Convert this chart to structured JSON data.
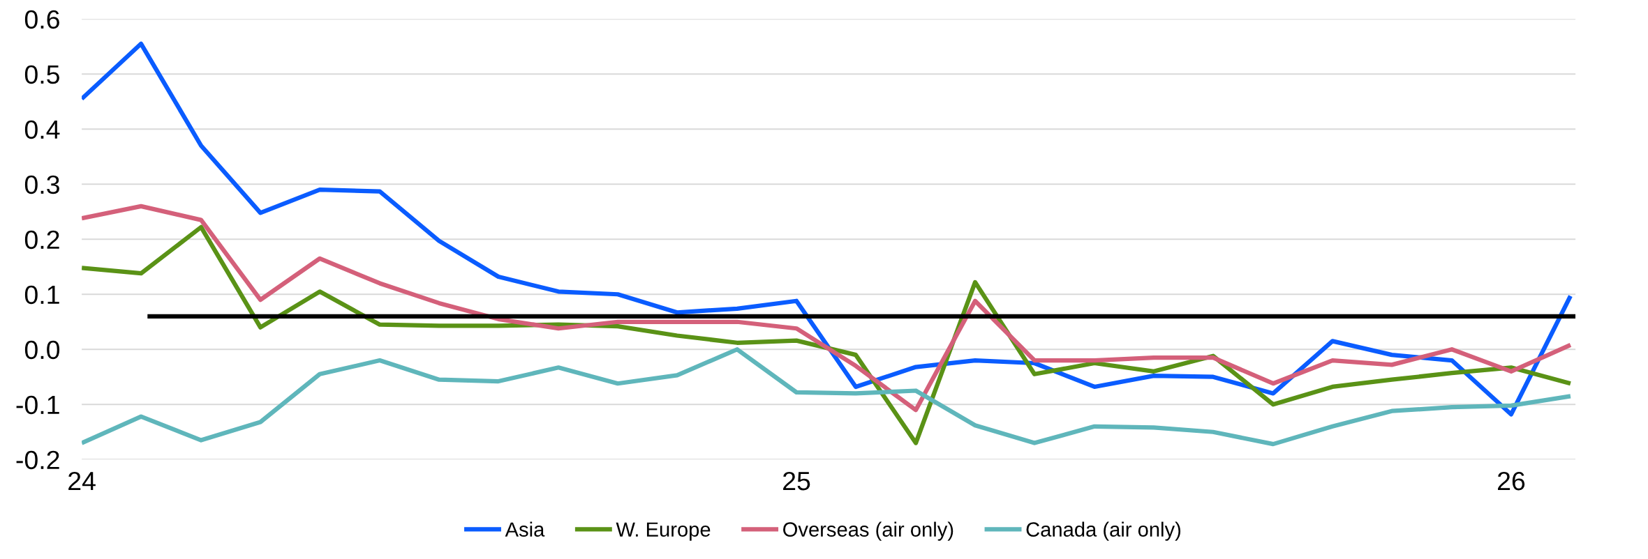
{
  "chart_data": {
    "type": "line",
    "x": [
      24.0,
      24.083,
      24.167,
      24.25,
      24.333,
      24.417,
      24.5,
      24.583,
      24.667,
      24.75,
      24.833,
      24.917,
      25.0,
      25.083,
      25.167,
      25.25,
      25.333,
      25.417,
      25.5,
      25.583,
      25.667,
      25.75,
      25.833,
      25.917,
      26.0,
      26.083
    ],
    "series": [
      {
        "name": "Asia",
        "color": "#0a5cff",
        "values": [
          0.455,
          0.555,
          0.37,
          0.248,
          0.29,
          0.287,
          0.197,
          0.132,
          0.105,
          0.1,
          0.067,
          0.074,
          0.088,
          -0.068,
          -0.032,
          -0.02,
          -0.025,
          -0.068,
          -0.048,
          -0.05,
          -0.08,
          0.015,
          -0.01,
          -0.02,
          -0.118,
          0.097
        ]
      },
      {
        "name": "W. Europe",
        "color": "#5a9216",
        "values": [
          0.148,
          0.138,
          0.222,
          0.04,
          0.105,
          0.045,
          0.043,
          0.043,
          0.045,
          0.042,
          0.025,
          0.012,
          0.016,
          -0.01,
          -0.17,
          0.122,
          -0.045,
          -0.025,
          -0.04,
          -0.012,
          -0.1,
          -0.068,
          -0.055,
          -0.043,
          -0.033,
          -0.062
        ]
      },
      {
        "name": "Overseas (air only)",
        "color": "#d4607a",
        "values": [
          0.238,
          0.26,
          0.235,
          0.09,
          0.165,
          0.12,
          0.084,
          0.055,
          0.038,
          0.05,
          0.05,
          0.05,
          0.038,
          -0.03,
          -0.11,
          0.088,
          -0.02,
          -0.02,
          -0.015,
          -0.015,
          -0.062,
          -0.02,
          -0.028,
          0.0,
          -0.04,
          0.008
        ]
      },
      {
        "name": "Canada (air only)",
        "color": "#5fb6bb",
        "values": [
          -0.17,
          -0.122,
          -0.165,
          -0.132,
          -0.045,
          -0.02,
          -0.055,
          -0.058,
          -0.033,
          -0.062,
          -0.047,
          0.0,
          -0.078,
          -0.08,
          -0.075,
          -0.138,
          -0.17,
          -0.14,
          -0.142,
          -0.15,
          -0.172,
          -0.14,
          -0.112,
          -0.105,
          -0.102,
          -0.085
        ]
      },
      {
        "color": "#000000",
        "x": [
          24.092,
          26.09
        ],
        "values": [
          0.06,
          0.06
        ]
      }
    ],
    "xlim": [
      24,
      26.09
    ],
    "xticks": [
      24,
      25,
      26
    ],
    "ylim": [
      -0.2,
      0.6
    ],
    "yticks": [
      {
        "value": -0.2,
        "label": "-0.2"
      },
      {
        "value": -0.1,
        "label": "-0.1"
      },
      {
        "value": 0,
        "label": "0.0"
      },
      0.1,
      0.2,
      0.3,
      0.4,
      0.5,
      0.6
    ],
    "grid": "y",
    "legend": "bottom",
    "marker": "none",
    "line_style": "solid"
  }
}
